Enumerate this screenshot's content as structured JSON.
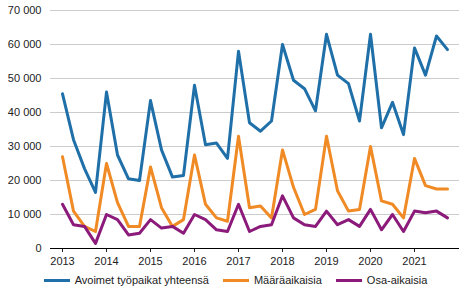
{
  "chart_data": {
    "type": "line",
    "categories": [
      "2013",
      null,
      null,
      null,
      "2014",
      null,
      null,
      null,
      "2015",
      null,
      null,
      null,
      "2016",
      null,
      null,
      null,
      "2017",
      null,
      null,
      null,
      "2018",
      null,
      null,
      null,
      "2019",
      null,
      null,
      null,
      "2020",
      null,
      null,
      null,
      "2021",
      null,
      null,
      null
    ],
    "series": [
      {
        "name": "Avoimet työpaikat yhteensä",
        "color": "#1f6fa8",
        "values": [
          45500,
          32000,
          23500,
          16500,
          46000,
          27500,
          20500,
          20000,
          43500,
          29000,
          21000,
          21500,
          48000,
          30500,
          31000,
          26500,
          58000,
          37000,
          34500,
          37500,
          60000,
          49500,
          47000,
          40500,
          63000,
          51000,
          48500,
          37500,
          63000,
          35500,
          43000,
          33500,
          59000,
          51000,
          62500,
          58500
        ]
      },
      {
        "name": "Määräaikaisia",
        "color": "#f08a24",
        "values": [
          27000,
          11000,
          6500,
          5000,
          25000,
          13500,
          6500,
          6500,
          24000,
          12000,
          6500,
          8500,
          27500,
          13000,
          9000,
          8000,
          33000,
          12000,
          12500,
          9000,
          29000,
          18000,
          10000,
          11500,
          33000,
          17000,
          11000,
          11500,
          30000,
          14000,
          13000,
          9000,
          26500,
          18500,
          17500,
          17500
        ]
      },
      {
        "name": "Osa-aikaisia",
        "color": "#8b1a7a",
        "values": [
          13000,
          7000,
          6500,
          1500,
          10000,
          8500,
          4000,
          4500,
          8500,
          6000,
          6500,
          4500,
          10000,
          8500,
          5500,
          5000,
          13000,
          5000,
          6500,
          7000,
          15500,
          9000,
          7000,
          6500,
          11000,
          7000,
          8500,
          6500,
          11500,
          5500,
          10000,
          5000,
          11000,
          10500,
          11000,
          9000
        ]
      }
    ],
    "ylim": [
      0,
      70000
    ],
    "yticks": [
      0,
      {
        "value": 10000,
        "label": "10 000"
      },
      {
        "value": 20000,
        "label": "20 000"
      },
      {
        "value": 30000,
        "label": "30 000"
      },
      {
        "value": 40000,
        "label": "40 000"
      },
      {
        "value": 50000,
        "label": "50 000"
      },
      {
        "value": 60000,
        "label": "60 000"
      },
      {
        "value": 70000,
        "label": "70 000"
      }
    ],
    "grid": true,
    "legend": "bottom"
  }
}
